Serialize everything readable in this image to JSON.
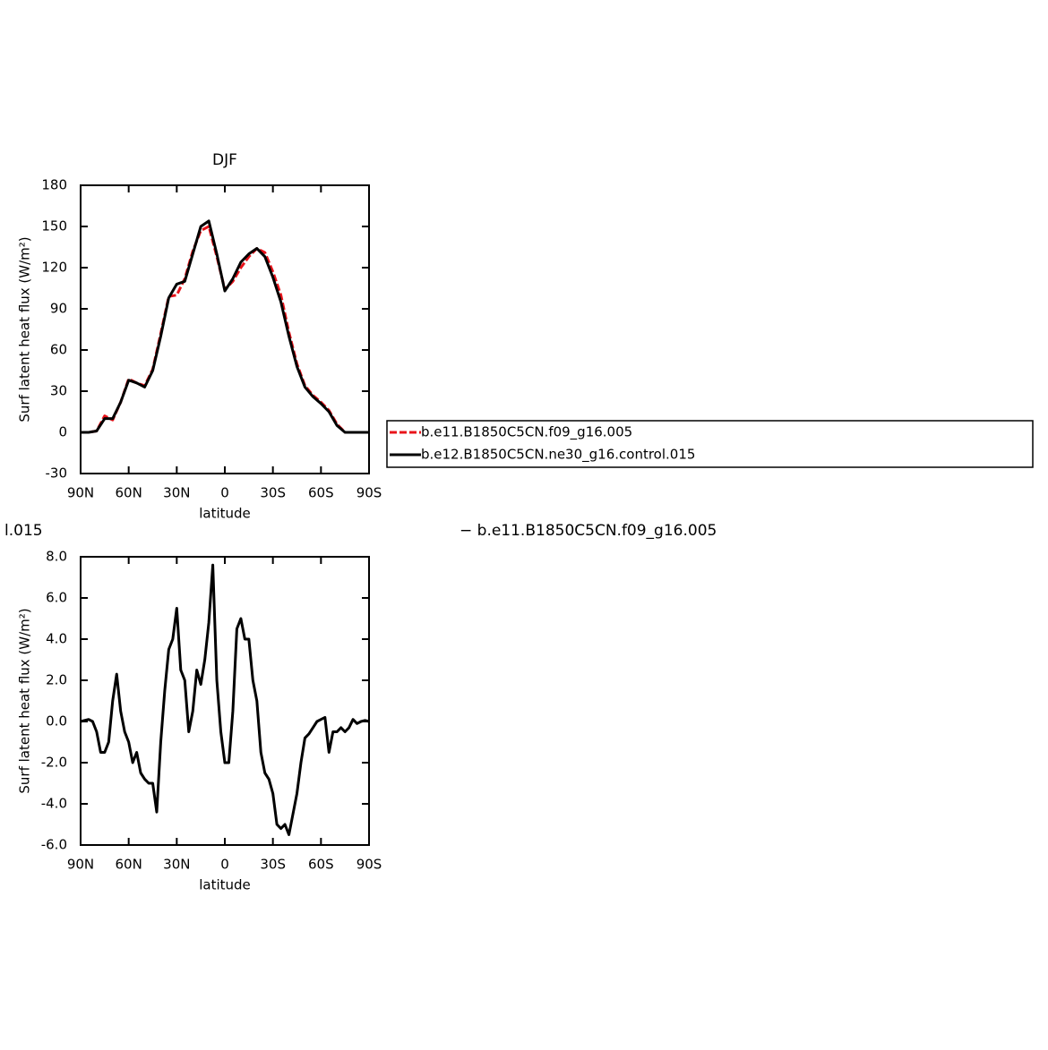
{
  "chart_data": [
    {
      "type": "line",
      "title": "DJF",
      "xlabel": "latitude",
      "ylabel": "Surf latent heat flux (W/m²)",
      "x": [
        90,
        85,
        80,
        75,
        70,
        65,
        60,
        55,
        50,
        45,
        40,
        35,
        30,
        25,
        20,
        15,
        10,
        5,
        0,
        -5,
        -10,
        -15,
        -20,
        -25,
        -30,
        -35,
        -40,
        -45,
        -50,
        -55,
        -60,
        -65,
        -70,
        -75,
        -80,
        -85,
        -90
      ],
      "series": [
        {
          "name": "b.e11.B1850C5CN.f09_g16.005",
          "color": "#e8141b",
          "dash": true,
          "values": [
            0,
            0,
            1,
            12,
            9,
            22,
            39,
            36,
            34,
            46,
            72,
            99,
            100,
            112,
            132,
            147,
            150,
            128,
            104,
            110,
            120,
            128,
            134,
            131,
            117,
            100,
            73,
            50,
            34,
            27,
            22,
            16,
            6,
            0,
            0,
            0,
            0
          ]
        },
        {
          "name": "b.e12.B1850C5CN.ne30_g16.control.015",
          "color": "#000000",
          "dash": false,
          "values": [
            0,
            0,
            1,
            10,
            10,
            22,
            38,
            36,
            33,
            45,
            70,
            98,
            108,
            110,
            130,
            150,
            154,
            130,
            103,
            112,
            124,
            130,
            134,
            128,
            113,
            95,
            70,
            48,
            33,
            26,
            21,
            15,
            5,
            0,
            0,
            0,
            0
          ]
        }
      ],
      "xlim": [
        90,
        -90
      ],
      "xticks": [
        {
          "value": 90,
          "label": "90N"
        },
        {
          "value": 60,
          "label": "60N"
        },
        {
          "value": 30,
          "label": "30N"
        },
        0,
        {
          "value": -30,
          "label": "30S"
        },
        {
          "value": -60,
          "label": "60S"
        },
        {
          "value": -90,
          "label": "90S"
        }
      ],
      "ylim": [
        -30,
        180
      ],
      "yticks": [
        -30,
        0,
        30,
        60,
        90,
        120,
        150,
        180
      ],
      "legend": "right"
    },
    {
      "type": "line",
      "title_fragments": [
        "l.015",
        "− b.e11.B1850C5CN.f09_g16.005"
      ],
      "xlabel": "latitude",
      "ylabel": "Surf latent heat flux (W/m²)",
      "x": [
        90,
        87.5,
        85,
        82.5,
        80,
        77.5,
        75,
        72.5,
        70,
        67.5,
        65,
        62.5,
        60,
        57.5,
        55,
        52.5,
        50,
        47.5,
        45,
        42.5,
        40,
        37.5,
        35,
        32.5,
        30,
        27.5,
        25,
        22.5,
        20,
        17.5,
        15,
        12.5,
        10,
        7.5,
        5,
        2.5,
        0,
        -2.5,
        -5,
        -7.5,
        -10,
        -12.5,
        -15,
        -17.5,
        -20,
        -22.5,
        -25,
        -27.5,
        -30,
        -32.5,
        -35,
        -37.5,
        -40,
        -42.5,
        -45,
        -47.5,
        -50,
        -52.5,
        -55,
        -57.5,
        -60,
        -62.5,
        -65,
        -67.5,
        -70,
        -72.5,
        -75,
        -77.5,
        -80,
        -82.5,
        -85,
        -87.5,
        -90
      ],
      "series": [
        {
          "color": "#000000",
          "dash": false,
          "values": [
            0.0,
            0.05,
            0.1,
            0.0,
            -0.5,
            -1.5,
            -1.5,
            -1.0,
            1.0,
            2.3,
            0.5,
            -0.5,
            -1.0,
            -2.0,
            -1.5,
            -2.5,
            -2.8,
            -3.0,
            -3.0,
            -4.4,
            -1.0,
            1.5,
            3.5,
            4.0,
            5.5,
            2.5,
            2.0,
            -0.5,
            0.5,
            2.5,
            1.8,
            3.0,
            4.8,
            7.6,
            2.0,
            -0.5,
            -2.0,
            -2.0,
            0.5,
            4.5,
            5.0,
            4.0,
            4.0,
            2.0,
            1.0,
            -1.5,
            -2.5,
            -2.8,
            -3.5,
            -5.0,
            -5.2,
            -5.0,
            -5.5,
            -4.5,
            -3.5,
            -2.0,
            -0.8,
            -0.6,
            -0.3,
            0.0,
            0.1,
            0.2,
            -1.5,
            -0.5,
            -0.5,
            -0.3,
            -0.5,
            -0.3,
            0.1,
            -0.1,
            0.0,
            0.05,
            0.0
          ]
        }
      ],
      "xlim": [
        90,
        -90
      ],
      "xticks": [
        {
          "value": 90,
          "label": "90N"
        },
        {
          "value": 60,
          "label": "60N"
        },
        {
          "value": 30,
          "label": "30N"
        },
        0,
        {
          "value": -30,
          "label": "30S"
        },
        {
          "value": -60,
          "label": "60S"
        },
        {
          "value": -90,
          "label": "90S"
        }
      ],
      "ylim": [
        -6,
        8
      ],
      "yticks": [
        {
          "value": -6,
          "label": "-6.0"
        },
        {
          "value": -4,
          "label": "-4.0"
        },
        {
          "value": -2,
          "label": "-2.0"
        },
        {
          "value": 0,
          "label": "0.0"
        },
        {
          "value": 2,
          "label": "2.0"
        },
        {
          "value": 4,
          "label": "4.0"
        },
        {
          "value": 6,
          "label": "6.0"
        },
        {
          "value": 8,
          "label": "8.0"
        }
      ]
    }
  ]
}
